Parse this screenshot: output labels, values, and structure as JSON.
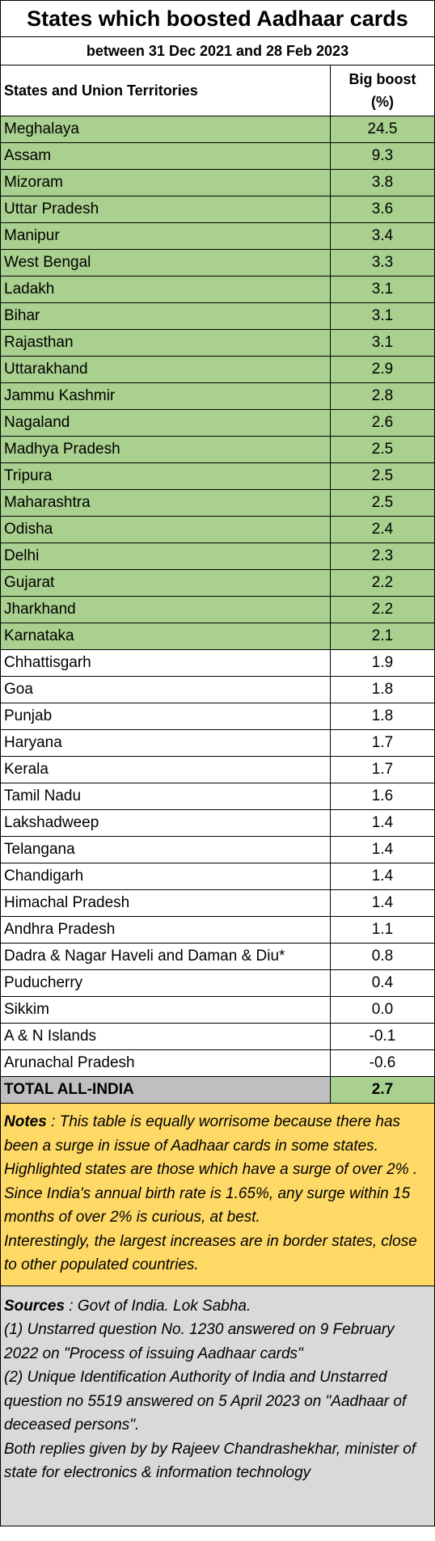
{
  "title": "States which boosted Aadhaar cards",
  "subtitle": "between 31 Dec 2021 and 28 Feb 2023",
  "columns": {
    "state": "States and Union Territories",
    "boost_line1": "Big boost",
    "boost_line2": "(%)"
  },
  "highlight_color": "#a9d08e",
  "rows": [
    {
      "state": "Meghalaya",
      "boost": "24.5",
      "highlight": true
    },
    {
      "state": "Assam",
      "boost": "9.3",
      "highlight": true
    },
    {
      "state": "Mizoram",
      "boost": "3.8",
      "highlight": true
    },
    {
      "state": "Uttar Pradesh",
      "boost": "3.6",
      "highlight": true
    },
    {
      "state": "Manipur",
      "boost": "3.4",
      "highlight": true
    },
    {
      "state": "West Bengal",
      "boost": "3.3",
      "highlight": true
    },
    {
      "state": "Ladakh",
      "boost": "3.1",
      "highlight": true
    },
    {
      "state": "Bihar",
      "boost": "3.1",
      "highlight": true
    },
    {
      "state": "Rajasthan",
      "boost": "3.1",
      "highlight": true
    },
    {
      "state": "Uttarakhand",
      "boost": "2.9",
      "highlight": true
    },
    {
      "state": "Jammu Kashmir",
      "boost": "2.8",
      "highlight": true
    },
    {
      "state": "Nagaland",
      "boost": "2.6",
      "highlight": true
    },
    {
      "state": "Madhya Pradesh",
      "boost": "2.5",
      "highlight": true
    },
    {
      "state": "Tripura",
      "boost": "2.5",
      "highlight": true
    },
    {
      "state": "Maharashtra",
      "boost": "2.5",
      "highlight": true
    },
    {
      "state": "Odisha",
      "boost": "2.4",
      "highlight": true
    },
    {
      "state": "Delhi",
      "boost": "2.3",
      "highlight": true
    },
    {
      "state": "Gujarat",
      "boost": "2.2",
      "highlight": true
    },
    {
      "state": "Jharkhand",
      "boost": "2.2",
      "highlight": true
    },
    {
      "state": "Karnataka",
      "boost": "2.1",
      "highlight": true
    },
    {
      "state": "Chhattisgarh",
      "boost": "1.9",
      "highlight": false
    },
    {
      "state": "Goa",
      "boost": "1.8",
      "highlight": false
    },
    {
      "state": "Punjab",
      "boost": "1.8",
      "highlight": false
    },
    {
      "state": "Haryana",
      "boost": "1.7",
      "highlight": false
    },
    {
      "state": "Kerala",
      "boost": "1.7",
      "highlight": false
    },
    {
      "state": "Tamil Nadu",
      "boost": "1.6",
      "highlight": false
    },
    {
      "state": "Lakshadweep",
      "boost": "1.4",
      "highlight": false
    },
    {
      "state": "Telangana",
      "boost": "1.4",
      "highlight": false
    },
    {
      "state": "Chandigarh",
      "boost": "1.4",
      "highlight": false
    },
    {
      "state": "Himachal Pradesh",
      "boost": "1.4",
      "highlight": false
    },
    {
      "state": "Andhra Pradesh",
      "boost": "1.1",
      "highlight": false
    },
    {
      "state": "Dadra & Nagar Haveli and Daman & Diu*",
      "boost": "0.8",
      "highlight": false
    },
    {
      "state": "Puducherry",
      "boost": "0.4",
      "highlight": false
    },
    {
      "state": "Sikkim",
      "boost": "0.0",
      "highlight": false
    },
    {
      "state": "A & N Islands",
      "boost": "-0.1",
      "highlight": false
    },
    {
      "state": "Arunachal Pradesh",
      "boost": "-0.6",
      "highlight": false
    }
  ],
  "total": {
    "label": "TOTAL ALL-INDIA",
    "boost": "2.7"
  },
  "notes": {
    "label": "Notes",
    "text": " : This table is equally worrisome because there has been a surge in issue of Aadhaar cards in some states.",
    "line2": "Highlighted states are those which have a surge of over 2% . Since India's annual birth rate is 1.65%, any surge within 15 months of over 2% is curious, at best.",
    "line3": "Interestingly, the largest increases are in border states, close to other populated countries."
  },
  "sources": {
    "label": "Sources",
    "text": " : Govt of India. Lok Sabha.",
    "line1": "(1) Unstarred question No. 1230 answered on 9 February 2022  on \"Process of issuing Aadhaar cards\"",
    "line2": "(2) Unique Identification Authority of India and Unstarred question no 5519 answered on 5 April 2023 on \"Aadhaar of deceased persons\".",
    "line3": "Both replies given by by Rajeev Chandrashekhar, minister of state for electronics & information technology"
  }
}
